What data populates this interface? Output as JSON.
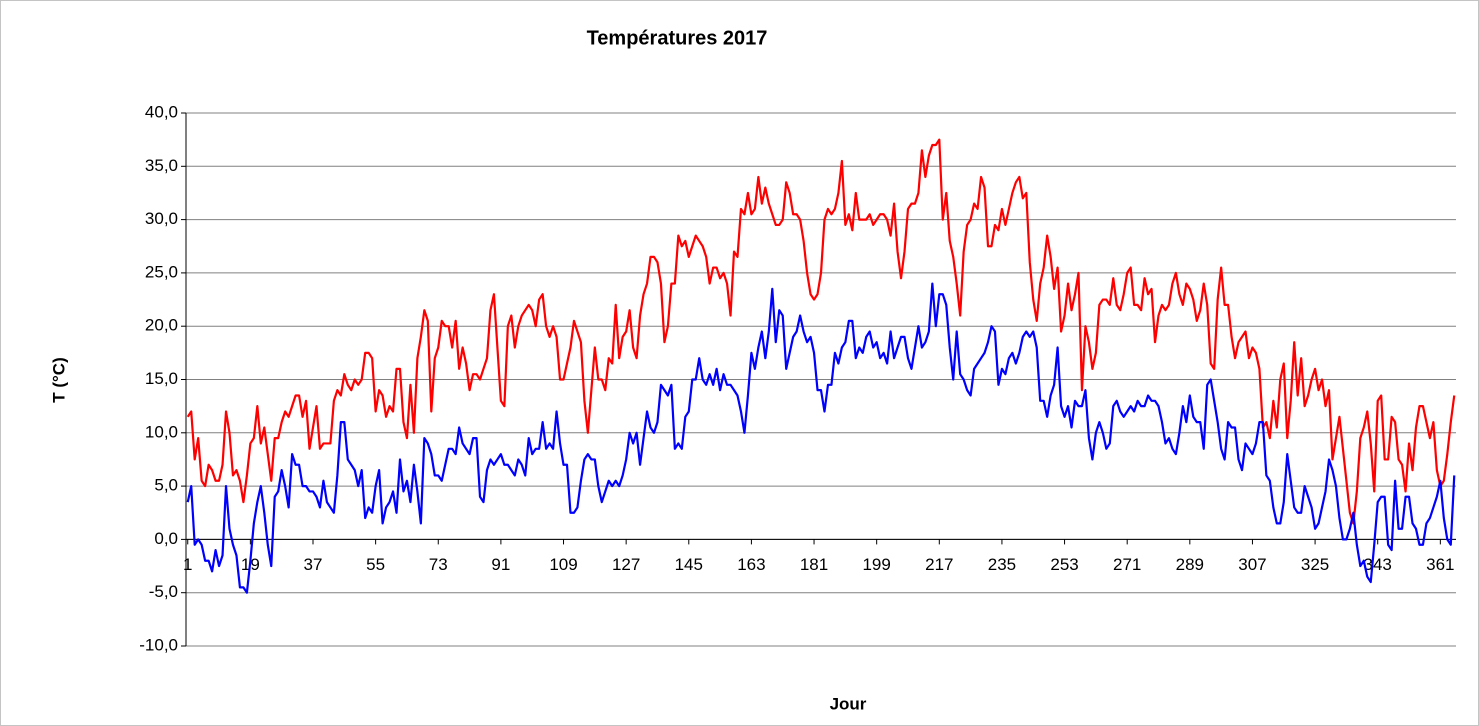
{
  "chart_data": {
    "type": "line",
    "title": "Températures 2017",
    "xlabel": "Jour",
    "ylabel": "T (°C)",
    "x": [
      1,
      2,
      3,
      4,
      5,
      6,
      7,
      8,
      9,
      10,
      11,
      12,
      13,
      14,
      15,
      16,
      17,
      18,
      19,
      20,
      21,
      22,
      23,
      24,
      25,
      26,
      27,
      28,
      29,
      30,
      31,
      32,
      33,
      34,
      35,
      36,
      37,
      38,
      39,
      40,
      41,
      42,
      43,
      44,
      45,
      46,
      47,
      48,
      49,
      50,
      51,
      52,
      53,
      54,
      55,
      56,
      57,
      58,
      59,
      60,
      61,
      62,
      63,
      64,
      65,
      66,
      67,
      68,
      69,
      70,
      71,
      72,
      73,
      74,
      75,
      76,
      77,
      78,
      79,
      80,
      81,
      82,
      83,
      84,
      85,
      86,
      87,
      88,
      89,
      90,
      91,
      92,
      93,
      94,
      95,
      96,
      97,
      98,
      99,
      100,
      101,
      102,
      103,
      104,
      105,
      106,
      107,
      108,
      109,
      110,
      111,
      112,
      113,
      114,
      115,
      116,
      117,
      118,
      119,
      120,
      121,
      122,
      123,
      124,
      125,
      126,
      127,
      128,
      129,
      130,
      131,
      132,
      133,
      134,
      135,
      136,
      137,
      138,
      139,
      140,
      141,
      142,
      143,
      144,
      145,
      146,
      147,
      148,
      149,
      150,
      151,
      152,
      153,
      154,
      155,
      156,
      157,
      158,
      159,
      160,
      161,
      162,
      163,
      164,
      165,
      166,
      167,
      168,
      169,
      170,
      171,
      172,
      173,
      174,
      175,
      176,
      177,
      178,
      179,
      180,
      181,
      182,
      183,
      184,
      185,
      186,
      187,
      188,
      189,
      190,
      191,
      192,
      193,
      194,
      195,
      196,
      197,
      198,
      199,
      200,
      201,
      202,
      203,
      204,
      205,
      206,
      207,
      208,
      209,
      210,
      211,
      212,
      213,
      214,
      215,
      216,
      217,
      218,
      219,
      220,
      221,
      222,
      223,
      224,
      225,
      226,
      227,
      228,
      229,
      230,
      231,
      232,
      233,
      234,
      235,
      236,
      237,
      238,
      239,
      240,
      241,
      242,
      243,
      244,
      245,
      246,
      247,
      248,
      249,
      250,
      251,
      252,
      253,
      254,
      255,
      256,
      257,
      258,
      259,
      260,
      261,
      262,
      263,
      264,
      265,
      266,
      267,
      268,
      269,
      270,
      271,
      272,
      273,
      274,
      275,
      276,
      277,
      278,
      279,
      280,
      281,
      282,
      283,
      284,
      285,
      286,
      287,
      288,
      289,
      290,
      291,
      292,
      293,
      294,
      295,
      296,
      297,
      298,
      299,
      300,
      301,
      302,
      303,
      304,
      305,
      306,
      307,
      308,
      309,
      310,
      311,
      312,
      313,
      314,
      315,
      316,
      317,
      318,
      319,
      320,
      321,
      322,
      323,
      324,
      325,
      326,
      327,
      328,
      329,
      330,
      331,
      332,
      333,
      334,
      335,
      336,
      337,
      338,
      339,
      340,
      341,
      342,
      343,
      344,
      345,
      346,
      347,
      348,
      349,
      350,
      351,
      352,
      353,
      354,
      355,
      356,
      357,
      358,
      359,
      360,
      361,
      362,
      363,
      364,
      365
    ],
    "series": [
      {
        "color": "#ff0000",
        "values": [
          11.5,
          12,
          7.5,
          9.5,
          5.5,
          5,
          7,
          6.5,
          5.5,
          5.5,
          7,
          12,
          10,
          6,
          6.5,
          5.5,
          3.5,
          6,
          9,
          9.5,
          12.5,
          9,
          10.5,
          8,
          5.5,
          9.5,
          9.5,
          11,
          12,
          11.5,
          12.5,
          13.5,
          13.5,
          11.5,
          13,
          8.5,
          10.5,
          12.5,
          8.5,
          9,
          9,
          9,
          13,
          14,
          13.5,
          15.5,
          14.5,
          14,
          15,
          14.5,
          15,
          17.5,
          17.5,
          17,
          12,
          14,
          13.5,
          11.5,
          12.5,
          12,
          16,
          16,
          11,
          9.5,
          14.5,
          10,
          17,
          19,
          21.5,
          20.5,
          12,
          17,
          18,
          20.5,
          20,
          20,
          18,
          20.5,
          16,
          18,
          16.5,
          14,
          15.5,
          15.5,
          15,
          16,
          17,
          21.5,
          23,
          18,
          13,
          12.5,
          20,
          21,
          18,
          20,
          21,
          21.5,
          22,
          21.5,
          20,
          22.5,
          23,
          20,
          19,
          20,
          19,
          15,
          15,
          16.5,
          18,
          20.5,
          19.5,
          18.5,
          13,
          10,
          14,
          18,
          15,
          15,
          14,
          17,
          16.5,
          22,
          17,
          19,
          19.5,
          21.5,
          18,
          17,
          21,
          23,
          24,
          26.5,
          26.5,
          26,
          24,
          18.5,
          20,
          24,
          24,
          28.5,
          27.5,
          28,
          26.5,
          27.5,
          28.5,
          28,
          27.5,
          26.5,
          24,
          25.5,
          25.5,
          24.5,
          25,
          24,
          21,
          27,
          26.5,
          31,
          30.5,
          32.5,
          30.5,
          31,
          34,
          31.5,
          33,
          31.5,
          30.5,
          29.5,
          29.5,
          30,
          33.5,
          32.5,
          30.5,
          30.5,
          30,
          28,
          25,
          23,
          22.5,
          23,
          25,
          30,
          31,
          30.5,
          31,
          32.5,
          35.5,
          29.5,
          30.5,
          29,
          32.5,
          30,
          30,
          30,
          30.5,
          29.5,
          30,
          30.5,
          30.5,
          30,
          28.5,
          31.5,
          27,
          24.5,
          27,
          31,
          31.5,
          31.5,
          32.5,
          36.5,
          34,
          36,
          37,
          37,
          37.5,
          30,
          32.5,
          28,
          26.5,
          24,
          21,
          27,
          29.5,
          30,
          31.5,
          31,
          34,
          33,
          27.5,
          27.5,
          29.5,
          29,
          31,
          29.5,
          31,
          32.5,
          33.5,
          34,
          32,
          32.5,
          26,
          22.5,
          20.5,
          24,
          25.5,
          28.5,
          26.5,
          23.5,
          25.5,
          19.5,
          21,
          24,
          21.5,
          23,
          25,
          14,
          20,
          18.5,
          16,
          17.5,
          22,
          22.5,
          22.5,
          22,
          24.5,
          22,
          21.5,
          23,
          25,
          25.5,
          22,
          22,
          21.5,
          24.5,
          23,
          23.5,
          18.5,
          21,
          22,
          21.5,
          22,
          24,
          25,
          23,
          22,
          24,
          23.5,
          22.5,
          20.5,
          21.5,
          24,
          22,
          16.5,
          16,
          22.5,
          25.5,
          22,
          22,
          19,
          17,
          18.5,
          19,
          19.5,
          17,
          18,
          17.5,
          16,
          10.5,
          11,
          9.5,
          13,
          10.5,
          15,
          16.5,
          9.5,
          13,
          18.5,
          13.5,
          17,
          12.5,
          13.5,
          15,
          16,
          14,
          15,
          12.5,
          14,
          7.5,
          9.5,
          11.5,
          8.5,
          5.5,
          2.5,
          1.5,
          4.5,
          9.5,
          10.5,
          12,
          9,
          4.5,
          13,
          13.5,
          7.5,
          7.5,
          11.5,
          11,
          7.5,
          7,
          4.5,
          9,
          6.5,
          10.5,
          12.5,
          12.5,
          11,
          9.5,
          11,
          6.5,
          5,
          5.5,
          8,
          11,
          13.5
        ]
      },
      {
        "color": "#0000ff",
        "values": [
          3.5,
          5,
          -0.5,
          0,
          -0.5,
          -2,
          -2,
          -3,
          -1,
          -2.5,
          -1.5,
          5,
          1,
          -0.5,
          -1.5,
          -4.5,
          -4.5,
          -5,
          -2,
          1.5,
          3.5,
          5,
          2.5,
          -0.5,
          -2.5,
          4,
          4.5,
          6.5,
          5,
          3,
          8,
          7,
          7,
          5,
          5,
          4.5,
          4.5,
          4,
          3,
          5.5,
          3.5,
          3,
          2.5,
          6,
          11,
          11,
          7.5,
          7,
          6.5,
          5,
          6.5,
          2,
          3,
          2.5,
          5,
          6.5,
          1.5,
          3,
          3.5,
          4.5,
          2.5,
          7.5,
          4.5,
          5.5,
          3.5,
          7,
          4.5,
          1.5,
          9.5,
          9,
          8,
          6,
          6,
          5.5,
          7,
          8.5,
          8.5,
          8,
          10.5,
          9,
          8.5,
          8,
          9.5,
          9.5,
          4,
          3.5,
          6.5,
          7.5,
          7,
          7.5,
          8,
          7,
          7,
          6.5,
          6,
          7.5,
          7,
          6,
          9.5,
          8,
          8.5,
          8.5,
          11,
          8.5,
          9,
          8.5,
          12,
          9,
          7,
          7,
          2.5,
          2.5,
          3,
          5.5,
          7.5,
          8,
          7.5,
          7.5,
          5,
          3.5,
          4.5,
          5.5,
          5,
          5.5,
          5,
          6,
          7.5,
          10,
          9,
          10,
          7,
          9.5,
          12,
          10.5,
          10,
          11,
          14.5,
          14,
          13.5,
          14.5,
          8.5,
          9,
          8.5,
          11.5,
          12,
          15,
          15,
          17,
          15,
          14.5,
          15.5,
          14.5,
          16,
          14,
          15.5,
          14.5,
          14.5,
          14,
          13.5,
          12,
          10,
          13.5,
          17.5,
          16,
          18,
          19.5,
          17,
          19.5,
          23.5,
          18.5,
          21.5,
          21,
          16,
          17.5,
          19,
          19.5,
          21,
          19.5,
          18.5,
          19,
          17.5,
          14,
          14,
          12,
          14.5,
          14.5,
          17.5,
          16.5,
          18,
          18.5,
          20.5,
          20.5,
          17,
          18,
          17.5,
          19,
          19.5,
          18,
          18.5,
          17,
          17.5,
          16.5,
          19.5,
          17,
          18,
          19,
          19,
          17,
          16,
          18,
          20,
          18,
          18.5,
          19.5,
          24,
          20,
          23,
          23,
          22,
          18,
          15,
          19.5,
          15.5,
          15,
          14,
          13.5,
          16,
          16.5,
          17,
          17.5,
          18.5,
          20,
          19.5,
          14.5,
          16,
          15.5,
          17,
          17.5,
          16.5,
          17.5,
          19,
          19.5,
          19,
          19.5,
          18,
          13,
          13,
          11.5,
          13.5,
          14.5,
          18,
          12.5,
          11.5,
          12.5,
          10.5,
          13,
          12.5,
          12.5,
          14,
          9.5,
          7.5,
          10,
          11,
          10,
          8.5,
          9,
          12.5,
          13,
          12,
          11.5,
          12,
          12.5,
          12,
          13,
          12.5,
          12.5,
          13.5,
          13,
          13,
          12.5,
          11,
          9,
          9.5,
          8.5,
          8,
          10,
          12.5,
          11,
          13.5,
          11.5,
          11,
          11,
          8.5,
          14.5,
          15,
          13,
          11,
          8.5,
          7.5,
          11,
          10.5,
          10.5,
          7.5,
          6.5,
          9,
          8.5,
          8,
          9,
          11,
          11,
          6,
          5.5,
          3,
          1.5,
          1.5,
          3.5,
          8,
          5.5,
          3,
          2.5,
          2.5,
          5,
          4,
          3,
          1,
          1.5,
          3,
          4.5,
          7.5,
          6.5,
          5,
          2,
          0,
          0,
          1,
          2.5,
          -0.5,
          -2.5,
          -2,
          -3.5,
          -4,
          -0.5,
          3.5,
          4,
          4,
          -0.5,
          -1,
          5.5,
          1,
          1,
          4,
          4,
          1.5,
          1,
          -0.5,
          -0.5,
          1.5,
          2,
          3,
          4,
          5.5,
          2,
          0,
          -0.5,
          6
        ]
      }
    ],
    "xlim": [
      0.5,
      365.5
    ],
    "xticks": [
      1,
      19,
      37,
      55,
      73,
      91,
      109,
      127,
      145,
      163,
      181,
      199,
      217,
      235,
      253,
      271,
      289,
      307,
      325,
      343,
      361
    ],
    "ylim": [
      -10,
      40
    ],
    "yticks": [
      {
        "value": -10,
        "label": "-10,0"
      },
      {
        "value": -5,
        "label": "-5,0"
      },
      {
        "value": 0,
        "label": "0,0"
      },
      {
        "value": 5,
        "label": "5,0"
      },
      {
        "value": 10,
        "label": "10,0"
      },
      {
        "value": 15,
        "label": "15,0"
      },
      {
        "value": 20,
        "label": "20,0"
      },
      {
        "value": 25,
        "label": "25,0"
      },
      {
        "value": 30,
        "label": "30,0"
      },
      {
        "value": 35,
        "label": "35,0"
      },
      {
        "value": 40,
        "label": "40,0"
      }
    ],
    "grid": true
  }
}
